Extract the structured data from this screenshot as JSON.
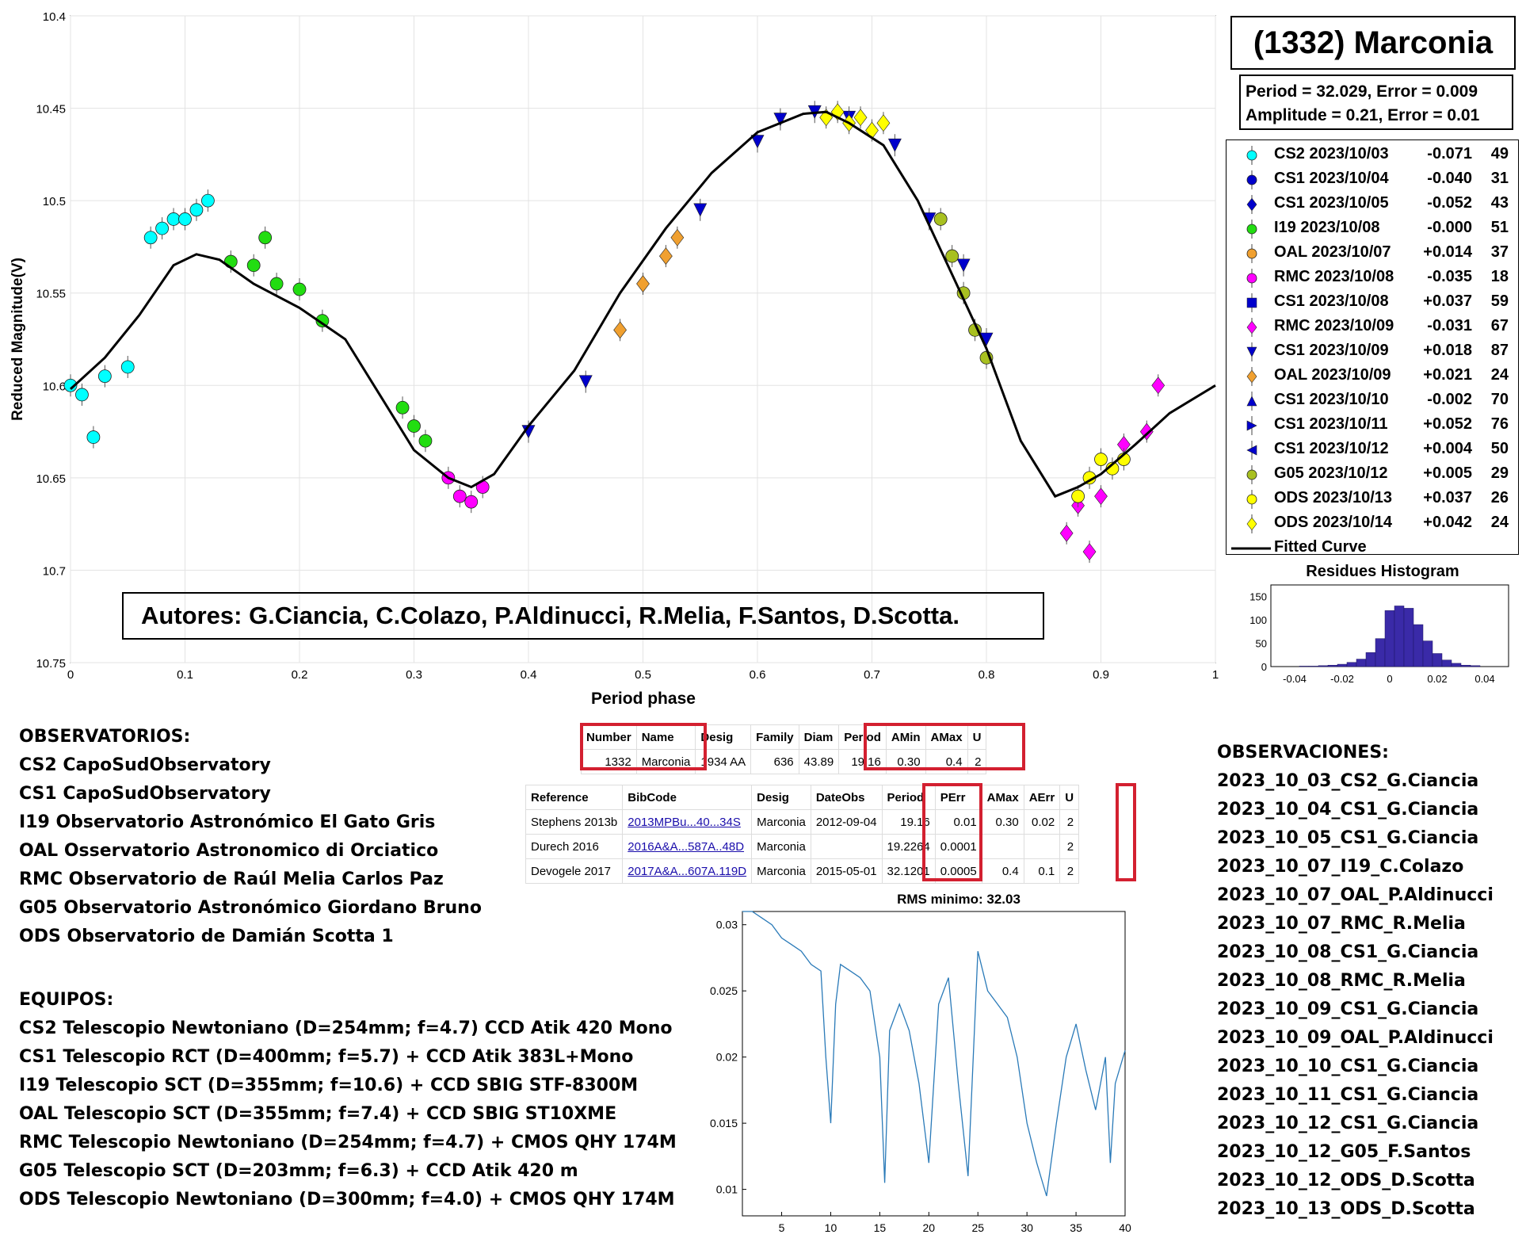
{
  "main_plot": {
    "ylabel": "Reduced Magnitude(V)",
    "xlabel": "Period phase",
    "yticks": [
      "10.4",
      "10.45",
      "10.5",
      "10.55",
      "10.6",
      "10.65",
      "10.7",
      "10.75"
    ],
    "xticks": [
      "0",
      "0.1",
      "0.2",
      "0.3",
      "0.4",
      "0.5",
      "0.6",
      "0.7",
      "0.8",
      "0.9",
      "1"
    ]
  },
  "title": "(1332) Marconia",
  "period_line": "Period =  32.029, Error = 0.009",
  "amplitude_line": "Amplitude = 0.21, Error = 0.01",
  "legend": [
    {
      "label": "CS2 2023/10/03",
      "offset": "-0.071",
      "count": "49",
      "color": "#00ffff",
      "marker": "circle"
    },
    {
      "label": "CS1 2023/10/04",
      "offset": "-0.040",
      "count": "31",
      "color": "#0000cc",
      "marker": "circle"
    },
    {
      "label": "CS1 2023/10/05",
      "offset": "-0.052",
      "count": "43",
      "color": "#0000cc",
      "marker": "diamond"
    },
    {
      "label": "I19 2023/10/08",
      "offset": "-0.000",
      "count": "51",
      "color": "#22dd11",
      "marker": "circle"
    },
    {
      "label": "OAL 2023/10/07",
      "offset": "+0.014",
      "count": "37",
      "color": "#f0a030",
      "marker": "circle"
    },
    {
      "label": "RMC 2023/10/08",
      "offset": "-0.035",
      "count": "18",
      "color": "#ff00ff",
      "marker": "circle"
    },
    {
      "label": "CS1 2023/10/08",
      "offset": "+0.037",
      "count": "59",
      "color": "#0000cc",
      "marker": "square"
    },
    {
      "label": "RMC 2023/10/09",
      "offset": "-0.031",
      "count": "67",
      "color": "#ff00ff",
      "marker": "diamond"
    },
    {
      "label": "CS1 2023/10/09",
      "offset": "+0.018",
      "count": "87",
      "color": "#0000cc",
      "marker": "tri-down"
    },
    {
      "label": "OAL 2023/10/09",
      "offset": "+0.021",
      "count": "24",
      "color": "#f0a030",
      "marker": "diamond"
    },
    {
      "label": "CS1 2023/10/10",
      "offset": "-0.002",
      "count": "70",
      "color": "#0000cc",
      "marker": "tri-up"
    },
    {
      "label": "CS1 2023/10/11",
      "offset": "+0.052",
      "count": "76",
      "color": "#0000cc",
      "marker": "tri-right"
    },
    {
      "label": "CS1 2023/10/12",
      "offset": "+0.004",
      "count": "50",
      "color": "#0000cc",
      "marker": "tri-left"
    },
    {
      "label": "G05 2023/10/12",
      "offset": "+0.005",
      "count": "29",
      "color": "#a8c020",
      "marker": "circle"
    },
    {
      "label": "ODS 2023/10/13",
      "offset": "+0.037",
      "count": "26",
      "color": "#ffff00",
      "marker": "circle"
    },
    {
      "label": "ODS 2023/10/14",
      "offset": "+0.042",
      "count": "24",
      "color": "#ffff00",
      "marker": "diamond"
    }
  ],
  "fitted_label": "Fitted Curve",
  "authors": "Autores: G.Ciancia, C.Colazo, P.Aldinucci, R.Melia, F.Santos, D.Scotta.",
  "histogram": {
    "title": "Residues Histogram",
    "yticks": [
      "0",
      "50",
      "100",
      "150"
    ],
    "xticks": [
      "-0.04",
      "-0.02",
      "0",
      "0.02",
      "0.04"
    ]
  },
  "observatorios": "OBSERVATORIOS:\nCS2 CapoSudObservatory\nCS1 CapoSudObservatory\nI19 Observatorio Astronómico El Gato Gris\nOAL Osservatorio Astronomico di Orciatico\nRMC Observatorio de Raúl Melia Carlos Paz\nG05 Observatorio Astronómico Giordano Bruno\nODS Observatorio de Damián Scotta 1",
  "equipos": "EQUIPOS:\nCS2 Telescopio Newtoniano (D=254mm; f=4.7) CCD Atik 420 Mono\nCS1 Telescopio RCT (D=400mm; f=5.7) + CCD Atik 383L+Mono\nI19 Telescopio SCT (D=355mm; f=10.6) + CCD SBIG STF-8300M\nOAL Telescopio SCT (D=355mm; f=7.4) + CCD SBIG ST10XME\nRMC Telescopio Newtoniano (D=254mm; f=4.7) + CMOS QHY 174M\nG05 Telescopio SCT (D=203mm; f=6.3) + CCD Atik 420 m\nODS Telescopio Newtoniano (D=300mm; f=4.0) + CMOS QHY 174M",
  "observaciones": "OBSERVACIONES:\n2023_10_03_CS2_G.Ciancia\n2023_10_04_CS1_G.Ciancia\n2023_10_05_CS1_G.Ciancia\n2023_10_07_I19_C.Colazo\n2023_10_07_OAL_P.Aldinucci\n2023_10_07_RMC_R.Melia\n2023_10_08_CS1_G.Ciancia\n2023_10_08_RMC_R.Melia\n2023_10_09_CS1_G.Ciancia\n2023_10_09_OAL_P.Aldinucci\n2023_10_10_CS1_G.Ciancia\n2023_10_11_CS1_G.Ciancia\n2023_10_12_CS1_G.Ciancia\n2023_10_12_G05_F.Santos\n2023_10_12_ODS_D.Scotta\n2023_10_13_ODS_D.Scotta",
  "table1": {
    "headers": [
      "Number",
      "Name",
      "Desig",
      "Family",
      "Diam",
      "Period",
      "AMin",
      "AMax",
      "U"
    ],
    "row": [
      "1332",
      "Marconia",
      "1934 AA",
      "636",
      "43.89",
      "19.16",
      "0.30",
      "0.4",
      "2"
    ]
  },
  "table2": {
    "headers": [
      "Reference",
      "BibCode",
      "Desig",
      "DateObs",
      "Period",
      "PErr",
      "AMax",
      "AErr",
      "U"
    ],
    "rows": [
      [
        "Stephens 2013b",
        "2013MPBu...40...34S",
        "Marconia",
        "2012-09-04",
        "19.16",
        "0.01",
        "0.30",
        "0.02",
        "2"
      ],
      [
        "Durech 2016",
        "2016A&A...587A..48D",
        "Marconia",
        "",
        "19.2264",
        "0.0001",
        "",
        "",
        "2"
      ],
      [
        "Devogele 2017",
        "2017A&A...607A.119D",
        "Marconia",
        "2015-05-01",
        "32.1201",
        "0.0005",
        "0.4",
        "0.1",
        "2"
      ]
    ]
  },
  "rms_plot": {
    "title": "RMS minimo: 32.03",
    "yticks": [
      "0.01",
      "0.015",
      "0.02",
      "0.025",
      "0.03"
    ],
    "xticks": [
      "5",
      "10",
      "15",
      "20",
      "25",
      "30",
      "35",
      "40"
    ]
  },
  "chart_data": [
    {
      "type": "scatter",
      "xlabel": "Period phase",
      "ylabel": "Reduced Magnitude(V)",
      "xlim": [
        0,
        1
      ],
      "ylim": [
        10.75,
        10.4
      ],
      "grid": true,
      "legend_position": "right",
      "series": [
        {
          "name": "Fitted Curve",
          "type": "line",
          "x": [
            0,
            0.03,
            0.06,
            0.09,
            0.11,
            0.13,
            0.16,
            0.2,
            0.24,
            0.27,
            0.3,
            0.33,
            0.35,
            0.37,
            0.4,
            0.44,
            0.48,
            0.52,
            0.56,
            0.6,
            0.64,
            0.66,
            0.68,
            0.71,
            0.74,
            0.77,
            0.8,
            0.83,
            0.86,
            0.88,
            0.9,
            0.93,
            0.96,
            1.0
          ],
          "y": [
            10.602,
            10.585,
            10.562,
            10.535,
            10.529,
            10.532,
            10.545,
            10.558,
            10.575,
            10.605,
            10.635,
            10.65,
            10.655,
            10.648,
            10.622,
            10.592,
            10.55,
            10.515,
            10.485,
            10.463,
            10.453,
            10.452,
            10.458,
            10.47,
            10.5,
            10.54,
            10.58,
            10.63,
            10.66,
            10.655,
            10.648,
            10.632,
            10.615,
            10.6
          ]
        },
        {
          "name": "CS2 2023/10/03",
          "x": [
            0.0,
            0.01,
            0.02,
            0.03,
            0.05,
            0.07,
            0.08,
            0.09,
            0.1,
            0.11,
            0.12
          ],
          "y": [
            10.6,
            10.605,
            10.628,
            10.595,
            10.59,
            10.52,
            10.515,
            10.51,
            10.51,
            10.505,
            10.5
          ]
        },
        {
          "name": "I19 2023/10/08",
          "x": [
            0.14,
            0.16,
            0.17,
            0.18,
            0.2,
            0.22,
            0.29,
            0.3,
            0.31
          ],
          "y": [
            10.533,
            10.535,
            10.52,
            10.545,
            10.548,
            10.565,
            10.612,
            10.622,
            10.63
          ]
        },
        {
          "name": "RMC 2023/10/08",
          "x": [
            0.33,
            0.34,
            0.35,
            0.36
          ],
          "y": [
            10.65,
            10.66,
            10.663,
            10.655
          ]
        },
        {
          "name": "OAL 2023/10/09",
          "x": [
            0.48,
            0.5,
            0.52,
            0.53
          ],
          "y": [
            10.57,
            10.545,
            10.53,
            10.52
          ]
        },
        {
          "name": "CS1 2023/10/09",
          "x": [
            0.4,
            0.45,
            0.55,
            0.6,
            0.62,
            0.65,
            0.68,
            0.72,
            0.75,
            0.78,
            0.8
          ],
          "y": [
            10.625,
            10.598,
            10.505,
            10.468,
            10.456,
            10.452,
            10.455,
            10.47,
            10.51,
            10.535,
            10.575
          ]
        },
        {
          "name": "ODS 2023/10/14",
          "x": [
            0.66,
            0.67,
            0.68,
            0.69,
            0.7,
            0.71
          ],
          "y": [
            10.455,
            10.452,
            10.458,
            10.455,
            10.462,
            10.458
          ]
        },
        {
          "name": "G05 2023/10/12",
          "x": [
            0.76,
            0.77,
            0.78,
            0.79,
            0.8
          ],
          "y": [
            10.51,
            10.53,
            10.55,
            10.57,
            10.585
          ]
        },
        {
          "name": "RMC 2023/10/09",
          "x": [
            0.87,
            0.88,
            0.89,
            0.9,
            0.92,
            0.94,
            0.95
          ],
          "y": [
            10.68,
            10.665,
            10.69,
            10.66,
            10.632,
            10.625,
            10.6
          ]
        },
        {
          "name": "ODS 2023/10/13",
          "x": [
            0.88,
            0.89,
            0.9,
            0.91,
            0.92
          ],
          "y": [
            10.66,
            10.65,
            10.64,
            10.645,
            10.64
          ]
        }
      ]
    },
    {
      "type": "bar",
      "title": "Residues Histogram",
      "x": [
        -0.036,
        -0.032,
        -0.028,
        -0.024,
        -0.02,
        -0.016,
        -0.012,
        -0.008,
        -0.004,
        0.0,
        0.004,
        0.008,
        0.012,
        0.016,
        0.02,
        0.024,
        0.028,
        0.032,
        0.036
      ],
      "values": [
        1,
        1,
        2,
        3,
        5,
        9,
        16,
        30,
        60,
        120,
        130,
        125,
        90,
        55,
        28,
        14,
        7,
        3,
        2
      ],
      "xlim": [
        -0.05,
        0.05
      ],
      "ylim": [
        0,
        175
      ]
    },
    {
      "type": "line",
      "title": "RMS minimo: 32.03",
      "xlim": [
        1,
        40
      ],
      "ylim": [
        0.008,
        0.031
      ],
      "x": [
        1,
        2,
        3,
        4,
        5,
        6,
        7,
        8,
        9,
        9.5,
        10,
        10.5,
        11,
        12,
        13,
        14,
        15,
        15.5,
        16,
        17,
        18,
        19,
        20,
        21,
        22,
        23,
        24,
        25,
        26,
        27,
        28,
        29,
        30,
        31,
        32,
        33,
        34,
        35,
        36,
        37,
        38,
        38.5,
        39,
        40
      ],
      "y": [
        0.031,
        0.031,
        0.0305,
        0.03,
        0.029,
        0.0285,
        0.028,
        0.027,
        0.0265,
        0.02,
        0.015,
        0.024,
        0.027,
        0.0265,
        0.026,
        0.025,
        0.02,
        0.0105,
        0.022,
        0.024,
        0.022,
        0.018,
        0.012,
        0.024,
        0.026,
        0.018,
        0.011,
        0.028,
        0.025,
        0.024,
        0.023,
        0.02,
        0.015,
        0.012,
        0.0095,
        0.015,
        0.02,
        0.0225,
        0.019,
        0.016,
        0.02,
        0.012,
        0.018,
        0.0205
      ]
    }
  ]
}
